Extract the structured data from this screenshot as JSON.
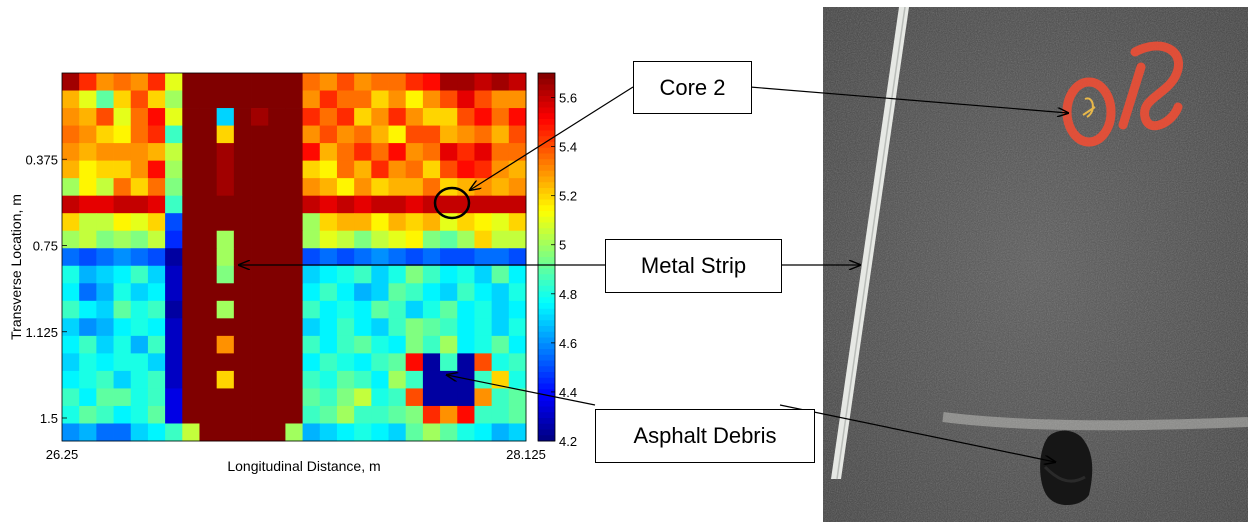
{
  "chart_data": {
    "type": "heatmap",
    "xlabel": "Longitudinal Distance, m",
    "ylabel": "Transverse Location, m",
    "x_tick_labels": [
      "26.25",
      "28.125"
    ],
    "y_tick_labels": [
      "0.375",
      "0.75",
      "1.125",
      "1.5"
    ],
    "colorbar_ticks": [
      "4.2",
      "4.4",
      "4.6",
      "4.8",
      "5",
      "5.2",
      "5.4",
      "5.6"
    ],
    "color_range": [
      4.2,
      5.7
    ],
    "colormap": "jet",
    "grid_rows": 21,
    "grid_cols": 27,
    "values": [
      [
        5.65,
        5.45,
        5.3,
        5.35,
        5.3,
        5.45,
        5.1,
        5.7,
        5.7,
        5.7,
        5.7,
        5.7,
        5.7,
        5.7,
        5.35,
        5.3,
        5.4,
        5.3,
        5.35,
        5.35,
        5.45,
        5.5,
        5.65,
        5.65,
        5.6,
        5.65,
        5.6
      ],
      [
        5.25,
        5.1,
        4.9,
        5.2,
        5.4,
        5.2,
        5.0,
        5.7,
        5.7,
        5.7,
        5.7,
        5.7,
        5.7,
        5.7,
        5.3,
        5.45,
        5.35,
        5.35,
        5.2,
        5.3,
        5.15,
        5.3,
        5.4,
        5.55,
        5.4,
        5.3,
        5.3
      ],
      [
        5.3,
        5.25,
        5.4,
        5.1,
        5.35,
        5.5,
        5.1,
        5.7,
        5.7,
        4.7,
        5.7,
        5.65,
        5.7,
        5.7,
        5.45,
        5.35,
        5.45,
        5.2,
        5.3,
        5.45,
        5.3,
        5.2,
        5.2,
        5.4,
        5.5,
        5.35,
        5.5
      ],
      [
        5.35,
        5.3,
        5.2,
        5.15,
        5.35,
        5.45,
        4.85,
        5.7,
        5.7,
        5.2,
        5.7,
        5.7,
        5.7,
        5.7,
        5.3,
        5.4,
        5.3,
        5.35,
        5.25,
        5.15,
        5.4,
        5.4,
        5.25,
        5.3,
        5.35,
        5.25,
        5.4
      ],
      [
        5.3,
        5.25,
        5.3,
        5.3,
        5.3,
        5.25,
        5.05,
        5.7,
        5.7,
        5.65,
        5.7,
        5.7,
        5.7,
        5.7,
        5.5,
        5.25,
        5.35,
        5.45,
        5.35,
        5.5,
        5.3,
        5.35,
        5.55,
        5.45,
        5.55,
        5.35,
        5.35
      ],
      [
        5.25,
        5.15,
        5.2,
        5.2,
        5.3,
        5.5,
        5.0,
        5.7,
        5.7,
        5.65,
        5.7,
        5.7,
        5.7,
        5.7,
        5.2,
        5.15,
        5.35,
        5.25,
        5.45,
        5.3,
        5.35,
        5.2,
        5.4,
        5.5,
        5.45,
        5.3,
        5.25
      ],
      [
        5.0,
        5.15,
        5.05,
        5.35,
        5.2,
        5.35,
        4.95,
        5.7,
        5.7,
        5.65,
        5.7,
        5.7,
        5.7,
        5.7,
        5.3,
        5.25,
        5.15,
        5.3,
        5.2,
        5.25,
        5.25,
        5.35,
        5.2,
        5.25,
        5.3,
        5.25,
        5.3
      ],
      [
        5.6,
        5.55,
        5.55,
        5.6,
        5.6,
        5.55,
        4.85,
        5.7,
        5.7,
        5.7,
        5.7,
        5.7,
        5.7,
        5.7,
        5.6,
        5.55,
        5.6,
        5.55,
        5.6,
        5.6,
        5.55,
        5.6,
        5.6,
        5.6,
        5.6,
        5.6,
        5.6
      ],
      [
        5.2,
        5.05,
        5.05,
        5.15,
        5.1,
        5.2,
        4.5,
        5.7,
        5.7,
        5.7,
        5.7,
        5.7,
        5.7,
        5.7,
        5.0,
        5.2,
        5.25,
        5.25,
        5.15,
        5.25,
        5.2,
        5.25,
        5.1,
        5.2,
        5.15,
        5.1,
        5.2
      ],
      [
        5.0,
        5.05,
        4.95,
        5.0,
        4.95,
        5.05,
        4.45,
        5.7,
        5.7,
        5.0,
        5.7,
        5.7,
        5.7,
        5.7,
        5.0,
        5.1,
        5.05,
        4.95,
        5.05,
        5.1,
        5.15,
        4.95,
        4.9,
        5.0,
        5.2,
        5.05,
        5.05
      ],
      [
        4.55,
        4.5,
        4.55,
        4.6,
        4.55,
        4.5,
        4.25,
        5.7,
        5.7,
        5.0,
        5.7,
        5.7,
        5.7,
        5.7,
        4.5,
        4.55,
        4.5,
        4.55,
        4.6,
        4.55,
        4.5,
        4.55,
        4.5,
        4.5,
        4.55,
        4.55,
        4.5
      ],
      [
        4.8,
        4.65,
        4.7,
        4.75,
        4.85,
        4.7,
        4.3,
        5.7,
        5.7,
        4.95,
        5.7,
        5.7,
        5.7,
        5.7,
        4.7,
        4.75,
        4.8,
        4.85,
        4.7,
        4.8,
        4.95,
        4.85,
        4.75,
        4.8,
        4.7,
        4.9,
        4.75
      ],
      [
        4.75,
        4.55,
        4.65,
        4.8,
        4.7,
        4.75,
        4.3,
        5.7,
        5.7,
        5.7,
        5.7,
        5.7,
        5.7,
        5.7,
        4.75,
        4.85,
        4.75,
        4.65,
        4.7,
        4.9,
        4.85,
        4.75,
        4.7,
        4.85,
        4.75,
        4.7,
        4.8
      ],
      [
        4.85,
        4.75,
        4.7,
        4.9,
        4.8,
        4.85,
        4.25,
        5.7,
        5.7,
        5.0,
        5.7,
        5.7,
        5.7,
        5.7,
        4.85,
        4.75,
        4.8,
        4.75,
        4.9,
        4.85,
        4.7,
        4.8,
        4.9,
        4.75,
        4.8,
        4.7,
        4.75
      ],
      [
        4.7,
        4.6,
        4.65,
        4.75,
        4.8,
        4.75,
        4.3,
        5.7,
        5.7,
        5.7,
        5.7,
        5.7,
        5.7,
        5.7,
        4.7,
        4.75,
        4.85,
        4.75,
        4.7,
        4.85,
        4.95,
        4.9,
        4.85,
        4.75,
        4.8,
        4.7,
        4.8
      ],
      [
        4.75,
        4.85,
        4.7,
        4.8,
        4.65,
        4.85,
        4.3,
        5.7,
        5.7,
        5.3,
        5.7,
        5.7,
        5.7,
        5.7,
        4.85,
        4.75,
        4.85,
        4.9,
        4.8,
        4.75,
        4.95,
        4.85,
        5.0,
        4.75,
        4.8,
        4.9,
        4.75
      ],
      [
        4.7,
        4.8,
        4.75,
        4.8,
        4.8,
        4.7,
        4.3,
        5.7,
        5.7,
        5.7,
        5.7,
        5.7,
        5.7,
        5.7,
        4.75,
        4.85,
        4.8,
        4.75,
        4.85,
        4.9,
        5.5,
        4.25,
        4.85,
        4.25,
        5.4,
        4.8,
        4.85
      ],
      [
        4.75,
        4.8,
        4.85,
        4.7,
        4.8,
        4.85,
        4.3,
        5.7,
        5.7,
        5.2,
        5.7,
        5.7,
        5.7,
        5.7,
        4.85,
        4.8,
        4.9,
        4.85,
        4.75,
        5.0,
        4.85,
        4.25,
        4.25,
        4.25,
        4.85,
        5.2,
        4.8
      ],
      [
        4.85,
        4.75,
        4.9,
        4.9,
        4.8,
        4.85,
        4.35,
        5.7,
        5.7,
        5.7,
        5.7,
        5.7,
        5.7,
        5.7,
        4.9,
        4.85,
        4.95,
        5.05,
        4.8,
        4.85,
        5.4,
        4.25,
        4.25,
        4.25,
        5.3,
        4.85,
        4.9
      ],
      [
        4.8,
        4.9,
        4.85,
        4.75,
        4.8,
        4.9,
        4.35,
        5.7,
        5.7,
        5.7,
        5.7,
        5.7,
        5.7,
        5.7,
        4.85,
        4.9,
        5.0,
        4.85,
        4.85,
        4.9,
        4.95,
        5.45,
        5.3,
        5.5,
        4.85,
        4.85,
        4.9
      ],
      [
        4.6,
        4.65,
        4.55,
        4.55,
        4.7,
        4.75,
        4.85,
        5.05,
        5.7,
        5.7,
        5.7,
        5.7,
        5.7,
        5.0,
        4.65,
        4.7,
        4.75,
        4.8,
        4.75,
        4.7,
        4.9,
        5.0,
        4.9,
        4.8,
        4.75,
        4.65,
        4.7
      ]
    ]
  },
  "callouts": {
    "core2": "Core 2",
    "metal_strip": "Metal Strip",
    "asphalt_debris": "Asphalt Debris"
  }
}
